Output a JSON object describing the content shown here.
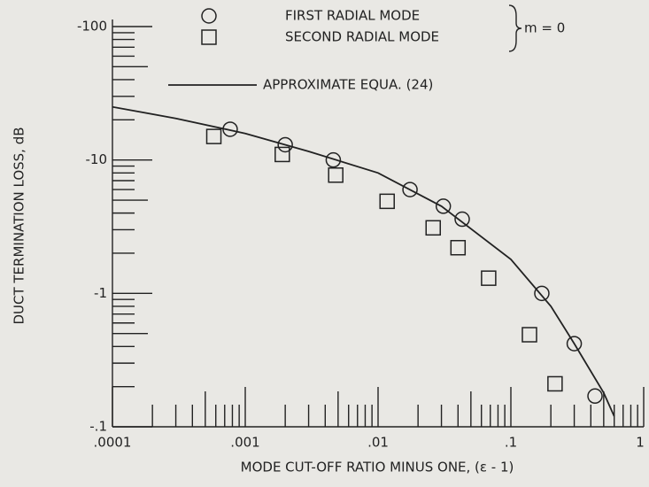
{
  "chart_data": {
    "type": "scatter",
    "x_label": "MODE CUT-OFF RATIO MINUS ONE, (ε - 1)",
    "y_label": "DUCT TERMINATION LOSS, dB",
    "annotation": "m = 0",
    "xscale": "log",
    "yscale": "log",
    "xlim": [
      0.0001,
      1
    ],
    "ylim": [
      -100,
      -0.1
    ],
    "xticks": [
      {
        "value": 0.0001,
        "label": ".0001"
      },
      {
        "value": 0.001,
        "label": ".001"
      },
      {
        "value": 0.01,
        "label": ".01"
      },
      {
        "value": 0.1,
        "label": ".1"
      },
      1
    ],
    "yticks": [
      -100,
      -10,
      -1,
      {
        "value": -0.1,
        "label": "-.1"
      }
    ],
    "series": [
      {
        "name": "FIRST RADIAL MODE",
        "marker": "circle",
        "color": "#222222",
        "x": [
          0.00077,
          0.002,
          0.0046,
          0.0174,
          0.031,
          0.043,
          0.171,
          0.3,
          0.43
        ],
        "values": [
          -17,
          -13,
          -10,
          -6,
          -4.5,
          -3.6,
          -1.0,
          -0.42,
          -0.17
        ]
      },
      {
        "name": "SECOND RADIAL MODE",
        "marker": "square",
        "color": "#222222",
        "x": [
          0.00058,
          0.0019,
          0.0048,
          0.0117,
          0.026,
          0.04,
          0.068,
          0.138,
          0.215
        ],
        "values": [
          -15,
          -11,
          -7.7,
          -4.9,
          -3.1,
          -2.2,
          -1.3,
          -0.49,
          -0.21
        ]
      },
      {
        "name": "APPROXIMATE EQUA. (24)",
        "marker": "line",
        "color": "#222222",
        "x": [
          0.0001,
          0.0003,
          0.001,
          0.003,
          0.01,
          0.03,
          0.1,
          0.2,
          0.3,
          0.5,
          0.6
        ],
        "values": [
          -25,
          -20.5,
          -15.8,
          -11.6,
          -8,
          -4.5,
          -1.8,
          -0.8,
          -0.42,
          -0.18,
          -0.12
        ]
      }
    ]
  }
}
